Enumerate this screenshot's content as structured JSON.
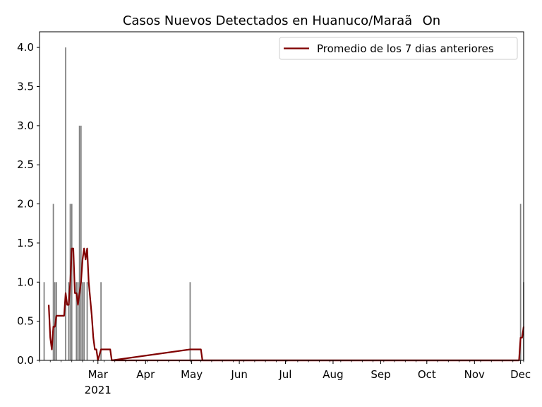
{
  "chart_data": {
    "type": "bar",
    "title": "Casos Nuevos Detectados en Huanuco/MaraãOn",
    "xlabel": "",
    "ylabel": "",
    "ylim": [
      0,
      4.2
    ],
    "xlim": [
      "2021-01-22",
      "2021-12-03"
    ],
    "y_ticks": [
      0.0,
      0.5,
      1.0,
      1.5,
      2.0,
      2.5,
      3.0,
      3.5,
      4.0
    ],
    "y_tick_labels": [
      "0.0",
      "0.5",
      "1.0",
      "1.5",
      "2.0",
      "2.5",
      "3.0",
      "3.5",
      "4.0"
    ],
    "x_ticks": [
      {
        "date": "2021-03-01",
        "label": "Mar",
        "sublabel": "2021"
      },
      {
        "date": "2021-04-01",
        "label": "Apr"
      },
      {
        "date": "2021-05-01",
        "label": "May"
      },
      {
        "date": "2021-06-01",
        "label": "Jun"
      },
      {
        "date": "2021-07-01",
        "label": "Jul"
      },
      {
        "date": "2021-08-01",
        "label": "Aug"
      },
      {
        "date": "2021-09-01",
        "label": "Sep"
      },
      {
        "date": "2021-10-01",
        "label": "Oct"
      },
      {
        "date": "2021-11-01",
        "label": "Nov"
      },
      {
        "date": "2021-12-01",
        "label": "Dec"
      }
    ],
    "bar_color": "#808080",
    "line_color": "#800000",
    "legend": {
      "position": "top-right",
      "entries": [
        "Promedio de los 7 dias anteriores"
      ]
    },
    "grid": false,
    "series": [
      {
        "name": "Casos Nuevos",
        "kind": "bar",
        "x": [
          "2021-01-22",
          "2021-01-25",
          "2021-01-31",
          "2021-02-01",
          "2021-02-02",
          "2021-02-08",
          "2021-02-10",
          "2021-02-11",
          "2021-02-12",
          "2021-02-15",
          "2021-02-16",
          "2021-02-17",
          "2021-02-18",
          "2021-02-19",
          "2021-02-20",
          "2021-02-22",
          "2021-03-03",
          "2021-04-30",
          "2021-12-01",
          "2021-12-03"
        ],
        "values": [
          1,
          1,
          2,
          1,
          1,
          4,
          1,
          2,
          2,
          1,
          1,
          3,
          3,
          1,
          1,
          1,
          1,
          1,
          2,
          1
        ]
      },
      {
        "name": "Promedio de los 7 dias anteriores",
        "kind": "line",
        "x": [
          "2021-01-28",
          "2021-01-29",
          "2021-01-30",
          "2021-01-31",
          "2021-02-01",
          "2021-02-02",
          "2021-02-04",
          "2021-02-06",
          "2021-02-07",
          "2021-02-08",
          "2021-02-09",
          "2021-02-10",
          "2021-02-11",
          "2021-02-12",
          "2021-02-13",
          "2021-02-14",
          "2021-02-15",
          "2021-02-16",
          "2021-02-18",
          "2021-02-19",
          "2021-02-20",
          "2021-02-21",
          "2021-02-22",
          "2021-02-23",
          "2021-02-25",
          "2021-02-26",
          "2021-02-27",
          "2021-02-28",
          "2021-03-01",
          "2021-03-03",
          "2021-03-09",
          "2021-03-10",
          "2021-04-30",
          "2021-05-07",
          "2021-05-08",
          "2021-11-30",
          "2021-12-01",
          "2021-12-02",
          "2021-12-03"
        ],
        "values": [
          0.71,
          0.29,
          0.14,
          0.43,
          0.43,
          0.57,
          0.57,
          0.57,
          0.57,
          0.86,
          0.71,
          0.71,
          1.0,
          1.43,
          1.43,
          0.86,
          0.86,
          0.71,
          1.0,
          1.29,
          1.43,
          1.29,
          1.43,
          1.0,
          0.57,
          0.29,
          0.14,
          0.14,
          0.0,
          0.14,
          0.14,
          0.0,
          0.14,
          0.14,
          0.0,
          0.0,
          0.29,
          0.29,
          0.43
        ]
      }
    ]
  }
}
